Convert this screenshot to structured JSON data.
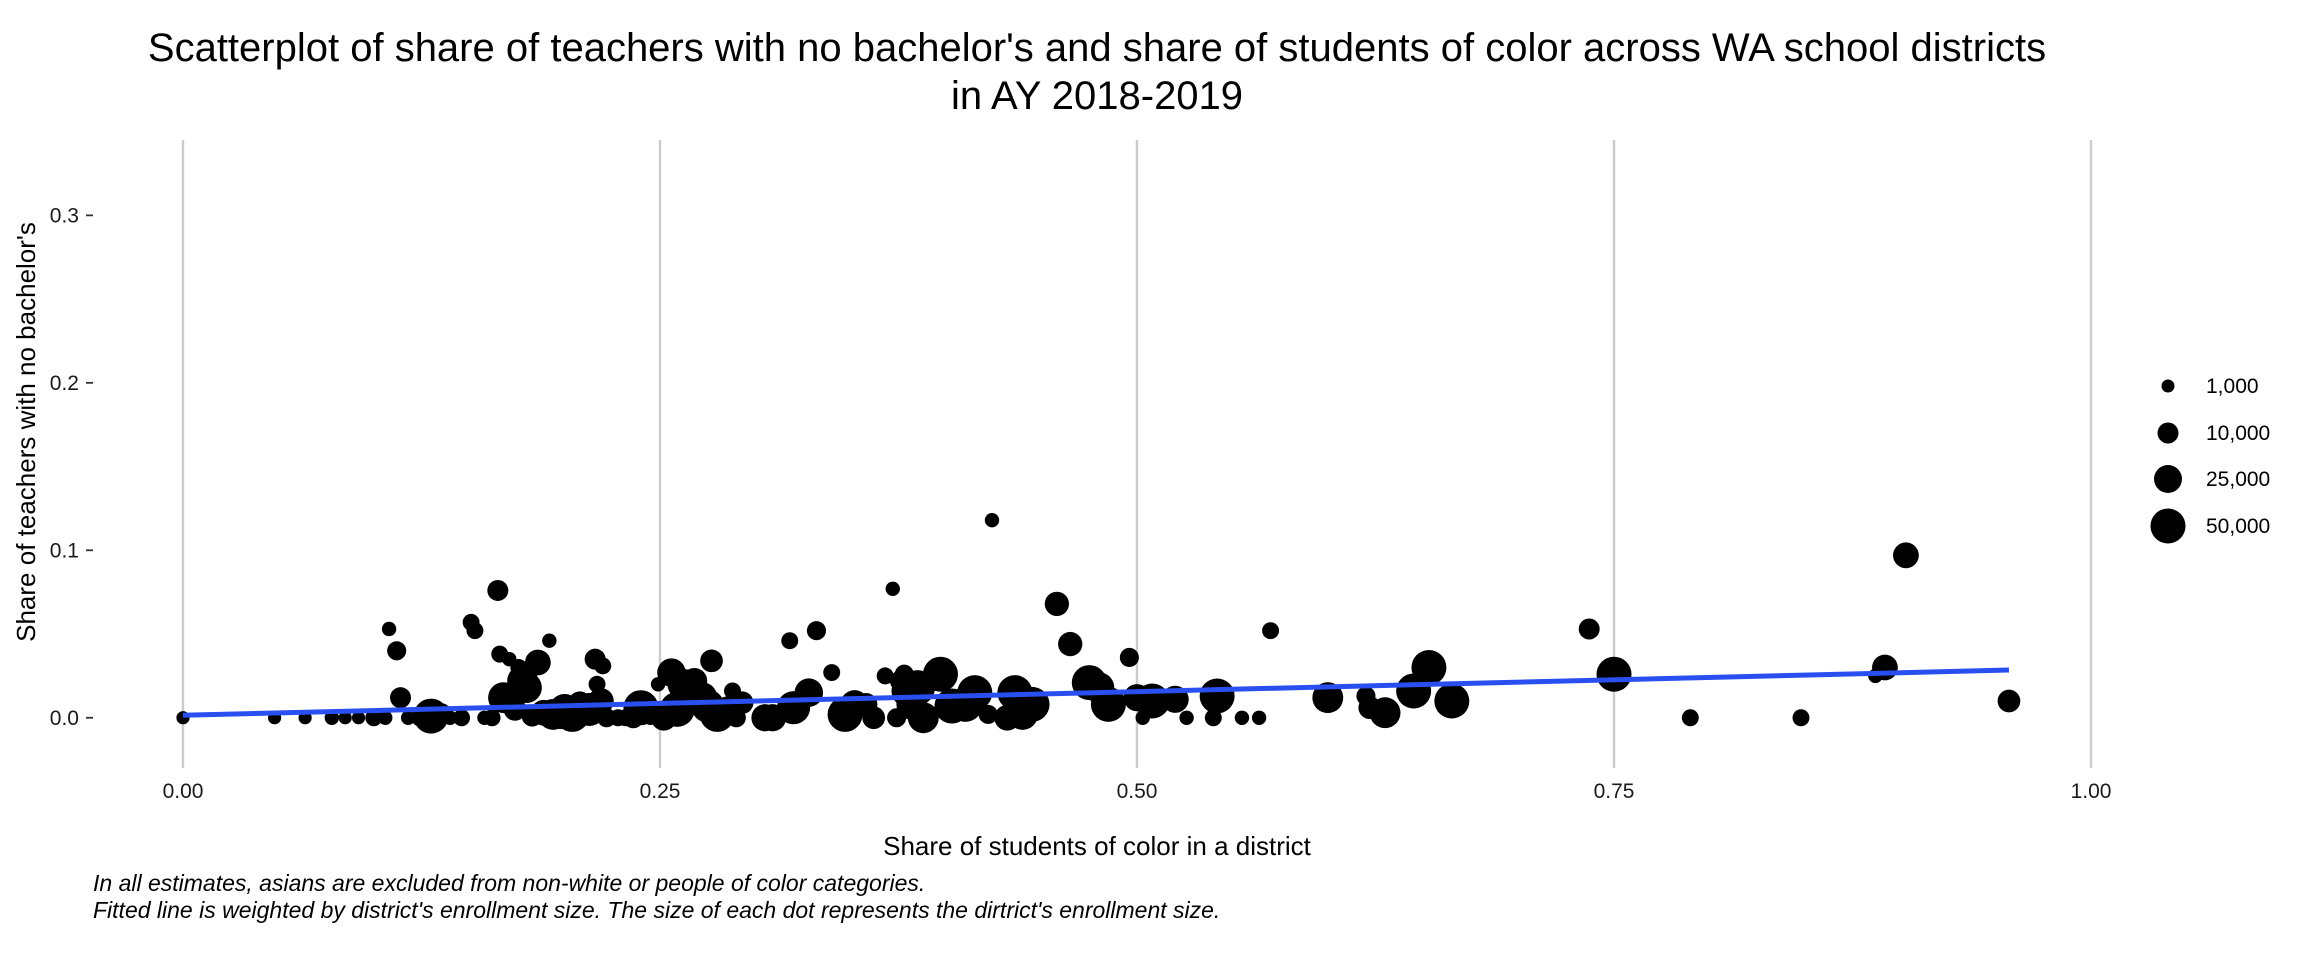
{
  "chart_data": {
    "type": "scatter",
    "title_line1": "Scatterplot of share of teachers with no bachelor's and share of students of color across WA school districts",
    "title_line2": "in AY 2018-2019",
    "xlabel": "Share of students of color in a district",
    "ylabel": "Share of teachers with no bachelor's",
    "xlim": [
      0,
      1
    ],
    "ylim": [
      -0.03,
      0.345
    ],
    "x_ticks": [
      0,
      0.25,
      0.5,
      0.75,
      1
    ],
    "x_tick_labels": [
      "0.00",
      "0.25",
      "0.50",
      "0.75",
      "1.00"
    ],
    "y_ticks": [
      0,
      0.1,
      0.2,
      0.3
    ],
    "y_tick_labels": [
      "0.0",
      "0.1",
      "0.2",
      "0.3"
    ],
    "grid": "vertical major lines",
    "legend": {
      "position": "right",
      "entries": [
        {
          "label": "1,000",
          "size": 1000
        },
        {
          "label": "10,000",
          "size": 10000
        },
        {
          "label": "25,000",
          "size": 25000
        },
        {
          "label": "50,000",
          "size": 50000
        }
      ]
    },
    "fit_line": {
      "color": "#2a4ff0",
      "x": [
        0,
        0.957
      ],
      "y": [
        0.0015,
        0.0285
      ]
    },
    "point_color": "#000000",
    "points": [
      {
        "x": 0.0,
        "y": 0.0,
        "size": 800
      },
      {
        "x": 0.048,
        "y": 0.0,
        "size": 800
      },
      {
        "x": 0.064,
        "y": 0.0,
        "size": 800
      },
      {
        "x": 0.078,
        "y": 0.0,
        "size": 1000
      },
      {
        "x": 0.085,
        "y": 0.0,
        "size": 800
      },
      {
        "x": 0.092,
        "y": 0.0,
        "size": 800
      },
      {
        "x": 0.1,
        "y": 0.0,
        "size": 1500
      },
      {
        "x": 0.106,
        "y": 0.0,
        "size": 1000
      },
      {
        "x": 0.108,
        "y": 0.053,
        "size": 1000
      },
      {
        "x": 0.112,
        "y": 0.04,
        "size": 2000
      },
      {
        "x": 0.114,
        "y": 0.012,
        "size": 2500
      },
      {
        "x": 0.118,
        "y": 0.0,
        "size": 1000
      },
      {
        "x": 0.124,
        "y": 0.0,
        "size": 1500
      },
      {
        "x": 0.13,
        "y": 0.001,
        "size": 8000
      },
      {
        "x": 0.135,
        "y": 0.002,
        "size": 3000
      },
      {
        "x": 0.14,
        "y": 0.0,
        "size": 1000
      },
      {
        "x": 0.146,
        "y": 0.0,
        "size": 1500
      },
      {
        "x": 0.151,
        "y": 0.057,
        "size": 1500
      },
      {
        "x": 0.153,
        "y": 0.052,
        "size": 1500
      },
      {
        "x": 0.158,
        "y": 0.0,
        "size": 1000
      },
      {
        "x": 0.162,
        "y": 0.0,
        "size": 1500
      },
      {
        "x": 0.165,
        "y": 0.076,
        "size": 2500
      },
      {
        "x": 0.166,
        "y": 0.038,
        "size": 1500
      },
      {
        "x": 0.168,
        "y": 0.012,
        "size": 6000
      },
      {
        "x": 0.171,
        "y": 0.035,
        "size": 1000
      },
      {
        "x": 0.174,
        "y": 0.005,
        "size": 3000
      },
      {
        "x": 0.176,
        "y": 0.03,
        "size": 1500
      },
      {
        "x": 0.178,
        "y": 0.022,
        "size": 6000
      },
      {
        "x": 0.18,
        "y": 0.018,
        "size": 6000
      },
      {
        "x": 0.183,
        "y": 0.001,
        "size": 2500
      },
      {
        "x": 0.186,
        "y": 0.033,
        "size": 4000
      },
      {
        "x": 0.189,
        "y": 0.003,
        "size": 4000
      },
      {
        "x": 0.192,
        "y": 0.046,
        "size": 1000
      },
      {
        "x": 0.194,
        "y": 0.002,
        "size": 6000
      },
      {
        "x": 0.198,
        "y": 0.0,
        "size": 3000
      },
      {
        "x": 0.2,
        "y": 0.005,
        "size": 6000
      },
      {
        "x": 0.204,
        "y": 0.002,
        "size": 8000
      },
      {
        "x": 0.208,
        "y": 0.009,
        "size": 3000
      },
      {
        "x": 0.21,
        "y": 0.002,
        "size": 3000
      },
      {
        "x": 0.213,
        "y": 0.005,
        "size": 7000
      },
      {
        "x": 0.216,
        "y": 0.035,
        "size": 2500
      },
      {
        "x": 0.217,
        "y": 0.02,
        "size": 1500
      },
      {
        "x": 0.219,
        "y": 0.01,
        "size": 4000
      },
      {
        "x": 0.22,
        "y": 0.031,
        "size": 1500
      },
      {
        "x": 0.222,
        "y": 0.0,
        "size": 2000
      },
      {
        "x": 0.228,
        "y": 0.0,
        "size": 1500
      },
      {
        "x": 0.232,
        "y": 0.0,
        "size": 1500
      },
      {
        "x": 0.236,
        "y": 0.0,
        "size": 2500
      },
      {
        "x": 0.24,
        "y": 0.006,
        "size": 12000
      },
      {
        "x": 0.245,
        "y": 0.0,
        "size": 1000
      },
      {
        "x": 0.249,
        "y": 0.02,
        "size": 1000
      },
      {
        "x": 0.252,
        "y": 0.0,
        "size": 4000
      },
      {
        "x": 0.256,
        "y": 0.027,
        "size": 5000
      },
      {
        "x": 0.259,
        "y": 0.005,
        "size": 12000
      },
      {
        "x": 0.262,
        "y": 0.02,
        "size": 6000
      },
      {
        "x": 0.265,
        "y": 0.012,
        "size": 7000
      },
      {
        "x": 0.268,
        "y": 0.022,
        "size": 4000
      },
      {
        "x": 0.272,
        "y": 0.012,
        "size": 6000
      },
      {
        "x": 0.275,
        "y": 0.007,
        "size": 7000
      },
      {
        "x": 0.277,
        "y": 0.034,
        "size": 3000
      },
      {
        "x": 0.28,
        "y": 0.002,
        "size": 12000
      },
      {
        "x": 0.285,
        "y": 0.007,
        "size": 2000
      },
      {
        "x": 0.288,
        "y": 0.016,
        "size": 1500
      },
      {
        "x": 0.29,
        "y": 0.0,
        "size": 2000
      },
      {
        "x": 0.293,
        "y": 0.009,
        "size": 3000
      },
      {
        "x": 0.305,
        "y": 0.0,
        "size": 4500
      },
      {
        "x": 0.309,
        "y": 0.0,
        "size": 4500
      },
      {
        "x": 0.318,
        "y": 0.046,
        "size": 1500
      },
      {
        "x": 0.32,
        "y": 0.006,
        "size": 7000
      },
      {
        "x": 0.328,
        "y": 0.015,
        "size": 5000
      },
      {
        "x": 0.332,
        "y": 0.052,
        "size": 2000
      },
      {
        "x": 0.34,
        "y": 0.027,
        "size": 1500
      },
      {
        "x": 0.347,
        "y": 0.002,
        "size": 12000
      },
      {
        "x": 0.352,
        "y": 0.008,
        "size": 5000
      },
      {
        "x": 0.358,
        "y": 0.008,
        "size": 3000
      },
      {
        "x": 0.362,
        "y": 0.0,
        "size": 3000
      },
      {
        "x": 0.368,
        "y": 0.025,
        "size": 1500
      },
      {
        "x": 0.372,
        "y": 0.077,
        "size": 1000
      },
      {
        "x": 0.374,
        "y": 0.0,
        "size": 2000
      },
      {
        "x": 0.376,
        "y": 0.022,
        "size": 2500
      },
      {
        "x": 0.378,
        "y": 0.026,
        "size": 2000
      },
      {
        "x": 0.38,
        "y": 0.016,
        "size": 7000
      },
      {
        "x": 0.382,
        "y": 0.008,
        "size": 6000
      },
      {
        "x": 0.385,
        "y": 0.018,
        "size": 12000
      },
      {
        "x": 0.388,
        "y": 0.0,
        "size": 6000
      },
      {
        "x": 0.397,
        "y": 0.026,
        "size": 12000
      },
      {
        "x": 0.403,
        "y": 0.007,
        "size": 25000
      },
      {
        "x": 0.41,
        "y": 0.008,
        "size": 16000
      },
      {
        "x": 0.415,
        "y": 0.015,
        "size": 14000
      },
      {
        "x": 0.422,
        "y": 0.002,
        "size": 2000
      },
      {
        "x": 0.424,
        "y": 0.118,
        "size": 1000
      },
      {
        "x": 0.432,
        "y": 0.0,
        "size": 4000
      },
      {
        "x": 0.436,
        "y": 0.015,
        "size": 10000
      },
      {
        "x": 0.44,
        "y": 0.002,
        "size": 6000
      },
      {
        "x": 0.445,
        "y": 0.008,
        "size": 9000
      },
      {
        "x": 0.458,
        "y": 0.068,
        "size": 3500
      },
      {
        "x": 0.465,
        "y": 0.044,
        "size": 3500
      },
      {
        "x": 0.475,
        "y": 0.021,
        "size": 12000
      },
      {
        "x": 0.48,
        "y": 0.018,
        "size": 6000
      },
      {
        "x": 0.485,
        "y": 0.008,
        "size": 14000
      },
      {
        "x": 0.496,
        "y": 0.036,
        "size": 2000
      },
      {
        "x": 0.5,
        "y": 0.012,
        "size": 4500
      },
      {
        "x": 0.503,
        "y": 0.0,
        "size": 1000
      },
      {
        "x": 0.508,
        "y": 0.01,
        "size": 9000
      },
      {
        "x": 0.52,
        "y": 0.011,
        "size": 4500
      },
      {
        "x": 0.526,
        "y": 0.0,
        "size": 1000
      },
      {
        "x": 0.54,
        "y": 0.0,
        "size": 1500
      },
      {
        "x": 0.542,
        "y": 0.013,
        "size": 14000
      },
      {
        "x": 0.555,
        "y": 0.0,
        "size": 1000
      },
      {
        "x": 0.564,
        "y": 0.0,
        "size": 1000
      },
      {
        "x": 0.57,
        "y": 0.052,
        "size": 1500
      },
      {
        "x": 0.6,
        "y": 0.012,
        "size": 6000
      },
      {
        "x": 0.62,
        "y": 0.013,
        "size": 2000
      },
      {
        "x": 0.622,
        "y": 0.006,
        "size": 3000
      },
      {
        "x": 0.63,
        "y": 0.003,
        "size": 6000
      },
      {
        "x": 0.645,
        "y": 0.016,
        "size": 10000
      },
      {
        "x": 0.653,
        "y": 0.03,
        "size": 12000
      },
      {
        "x": 0.665,
        "y": 0.01,
        "size": 9000
      },
      {
        "x": 0.737,
        "y": 0.053,
        "size": 2500
      },
      {
        "x": 0.75,
        "y": 0.026,
        "size": 12000
      },
      {
        "x": 0.79,
        "y": 0.0,
        "size": 1500
      },
      {
        "x": 0.848,
        "y": 0.0,
        "size": 1500
      },
      {
        "x": 0.887,
        "y": 0.025,
        "size": 1000
      },
      {
        "x": 0.892,
        "y": 0.03,
        "size": 4000
      },
      {
        "x": 0.903,
        "y": 0.097,
        "size": 4000
      },
      {
        "x": 0.957,
        "y": 0.01,
        "size": 3000
      }
    ],
    "caption_line1": "In all estimates, asians are excluded from non-white or people of color categories.",
    "caption_line2": "Fitted line is weighted by district's enrollment size. The size of each dot represents the dirtrict's enrollment size."
  }
}
